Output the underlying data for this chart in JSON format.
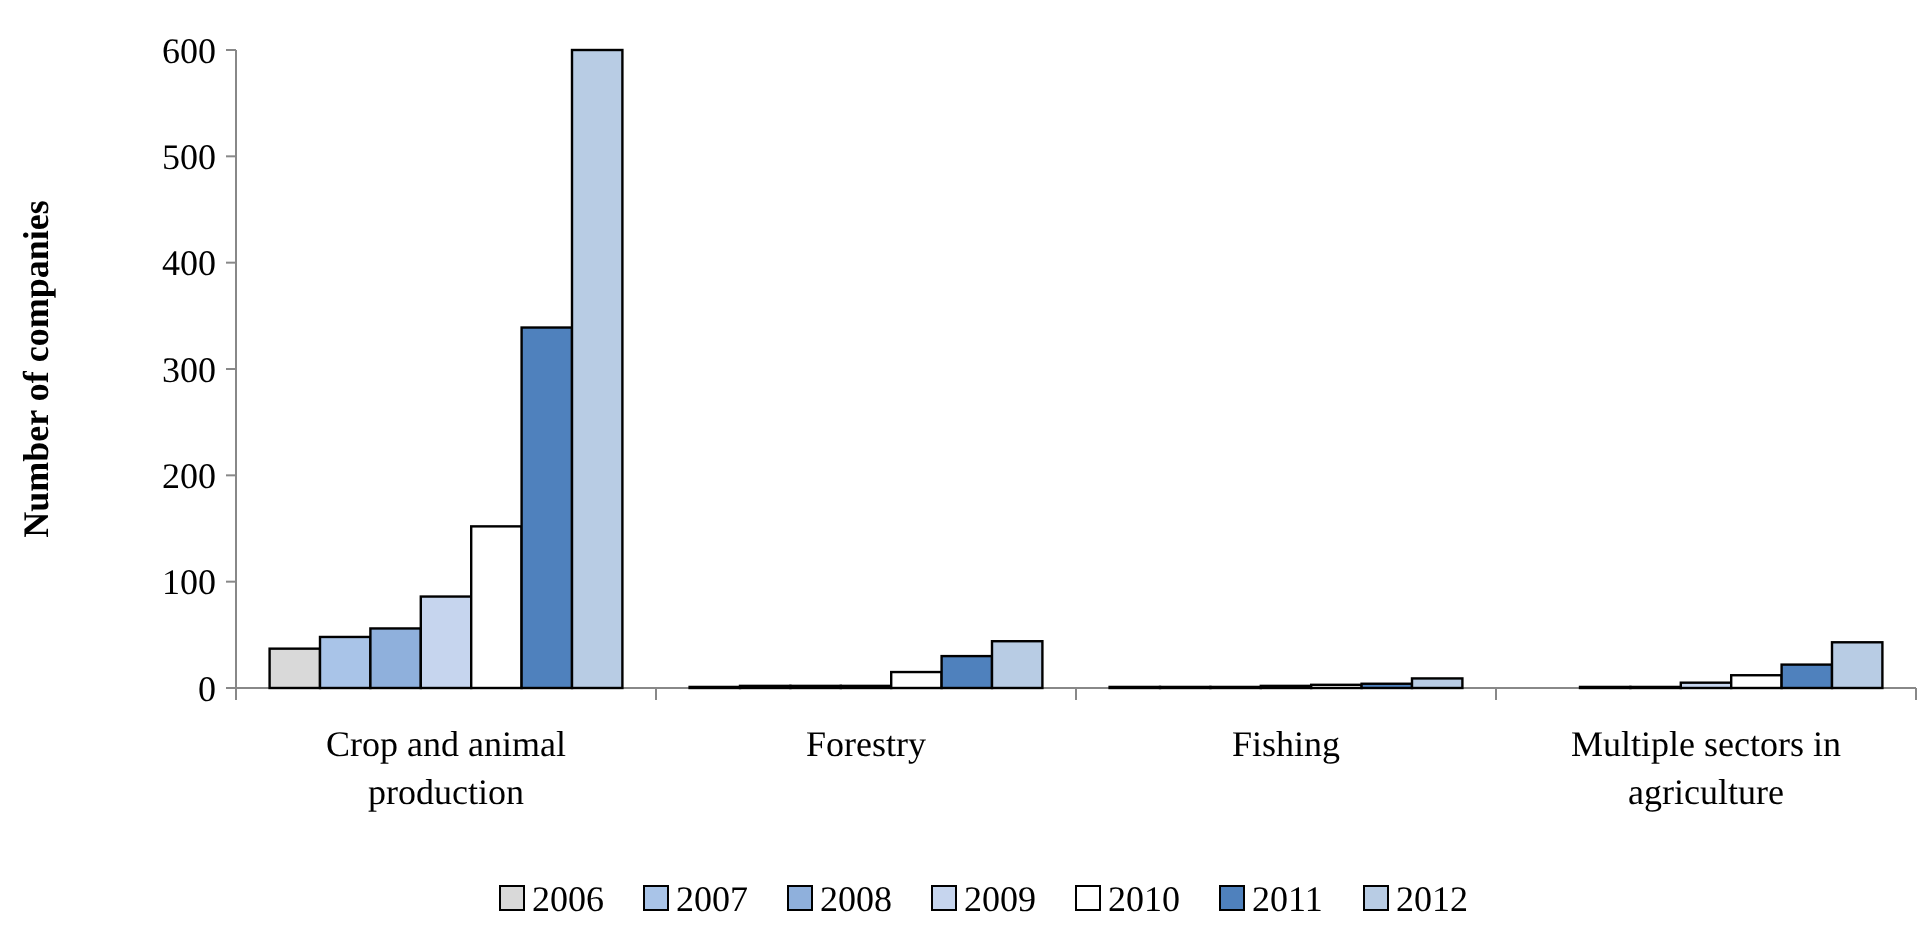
{
  "chart_data": {
    "type": "bar",
    "ylabel": "Number of companies",
    "categories": [
      "Crop and animal production",
      "Forestry",
      "Fishing",
      "Multiple sectors in agriculture"
    ],
    "ylim": [
      0,
      600
    ],
    "yticks": [
      0,
      100,
      200,
      300,
      400,
      500,
      600
    ],
    "grid": false,
    "legend": "bottom",
    "series": [
      {
        "name": "2006",
        "color": "#d9d9d9",
        "values": [
          37,
          1,
          1,
          0
        ]
      },
      {
        "name": "2007",
        "color": "#a9c4e8",
        "values": [
          48,
          2,
          1,
          1
        ]
      },
      {
        "name": "2008",
        "color": "#8fb0dc",
        "values": [
          56,
          2,
          1,
          1
        ]
      },
      {
        "name": "2009",
        "color": "#c6d5ee",
        "values": [
          86,
          2,
          2,
          5
        ]
      },
      {
        "name": "2010",
        "color": "#ffffff",
        "values": [
          152,
          15,
          3,
          12
        ]
      },
      {
        "name": "2011",
        "color": "#4f81bd",
        "values": [
          339,
          30,
          4,
          22
        ]
      },
      {
        "name": "2012",
        "color": "#b8cce4",
        "values": [
          600,
          44,
          9,
          43
        ]
      }
    ]
  }
}
